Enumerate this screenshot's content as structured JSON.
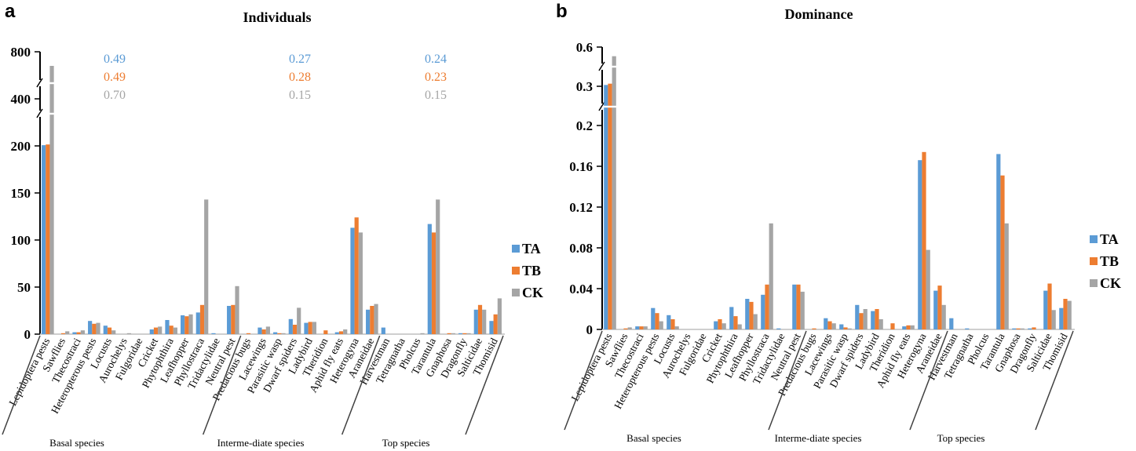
{
  "colors": {
    "TA": "#5b9bd5",
    "TB": "#ed7d31",
    "CK": "#a5a5a5"
  },
  "chart_data": [
    {
      "panel": "a",
      "type": "bar",
      "title": "Individuals",
      "xlabel": "",
      "ylabel": "",
      "axis_break": true,
      "yticks": [
        "0",
        "50",
        "100",
        "150",
        "200",
        "400",
        "800"
      ],
      "categories": [
        "Lepidoptera pests",
        "Sawflies",
        "Thecostraci",
        "Heteropterous pests",
        "Locusts",
        "Aurochelys",
        "Fulgoridae",
        "Cricket",
        "Phytophthira",
        "Leafhopper",
        "Phyllostraca",
        "Tridactylidae",
        "Neutral pest",
        "Predacious bugs",
        "Lacewings",
        "Parasitic wasp",
        "Dwarf spiders",
        "Ladybird",
        "Theridion",
        "Aphid fly eats",
        "Heterogyna",
        "Araneidae",
        "Harvestman",
        "Tetragnatha",
        "Pholcus",
        "Tarantula",
        "Gnaphosa",
        "Dragonfly",
        "Salticidae",
        "Thomisid"
      ],
      "groups": [
        {
          "label": "Basal species",
          "range": [
            0,
            12
          ]
        },
        {
          "label": "Interme-diate species",
          "range": [
            13,
            21
          ]
        },
        {
          "label": "Top species",
          "range": [
            22,
            29
          ]
        }
      ],
      "series": [
        {
          "name": "TA",
          "values": [
            203,
            0,
            2,
            14,
            9,
            0,
            0,
            5,
            15,
            20,
            23,
            1,
            30,
            0,
            7,
            2,
            16,
            12,
            0,
            2,
            113,
            26,
            7,
            0,
            0,
            117,
            0,
            1,
            26,
            14
          ]
        },
        {
          "name": "TB",
          "values": [
            206,
            1,
            2,
            11,
            7,
            0,
            0,
            7,
            9,
            19,
            31,
            0,
            31,
            1,
            5,
            1,
            10,
            13,
            4,
            3,
            124,
            30,
            0,
            0,
            0,
            108,
            1,
            1,
            31,
            21
          ]
        },
        {
          "name": "CK",
          "values": [
            680,
            3,
            4,
            12,
            4,
            1,
            0,
            8,
            7,
            21,
            143,
            0,
            51,
            0,
            8,
            1,
            28,
            13,
            0,
            5,
            108,
            32,
            0,
            0,
            1,
            143,
            1,
            1,
            26,
            38
          ]
        }
      ],
      "annotations": [
        {
          "group": "Basal species",
          "TA": "0.49",
          "TB": "0.49",
          "CK": "0.70"
        },
        {
          "group": "Interme-diate species",
          "TA": "0.27",
          "TB": "0.28",
          "CK": "0.15"
        },
        {
          "group": "Top species",
          "TA": "0.24",
          "TB": "0.23",
          "CK": "0.15"
        }
      ],
      "legend": [
        "TA",
        "TB",
        "CK"
      ],
      "legend_position": "right"
    },
    {
      "panel": "b",
      "type": "bar",
      "title": "Dominance",
      "xlabel": "",
      "ylabel": "",
      "axis_break": true,
      "yticks": [
        "0",
        "0.04",
        "0.08",
        "0.12",
        "0.16",
        "0.2",
        "0.3",
        "0.6"
      ],
      "categories": [
        "Lepidoptera pests",
        "Sawflies",
        "Thecostraci",
        "Heteropterous pests",
        "Locusts",
        "Aurochelys",
        "Fulgoridae",
        "Cricket",
        "Phytophthira",
        "Leafhopper",
        "Phyllostraca",
        "Tridactylidae",
        "Neutral pest",
        "Predacious bugs",
        "Lacewings",
        "Parasitic wasp",
        "Dwarf spiders",
        "Ladybird",
        "Theridion",
        "Aphid fly eats",
        "Heterogyna",
        "Araneidae",
        "Harvestman",
        "Tetragnatha",
        "Pholcus",
        "Tarantula",
        "Gnaphosa",
        "Dragonfly",
        "Salticidae",
        "Thomisid"
      ],
      "groups": [
        {
          "label": "Basal species",
          "range": [
            0,
            12
          ]
        },
        {
          "label": "Interme-diate species",
          "range": [
            13,
            21
          ]
        },
        {
          "label": "Top species",
          "range": [
            22,
            29
          ]
        }
      ],
      "series": [
        {
          "name": "TA",
          "values": [
            0.31,
            0,
            0.003,
            0.021,
            0.014,
            0,
            0,
            0.008,
            0.022,
            0.03,
            0.034,
            0.001,
            0.044,
            0,
            0.011,
            0.005,
            0.024,
            0.018,
            0,
            0.003,
            0.166,
            0.038,
            0.011,
            0.001,
            0,
            0.172,
            0.001,
            0.001,
            0.038,
            0.021
          ]
        },
        {
          "name": "TB",
          "values": [
            0.32,
            0.001,
            0.003,
            0.016,
            0.01,
            0,
            0,
            0.01,
            0.013,
            0.027,
            0.044,
            0,
            0.044,
            0.001,
            0.008,
            0.002,
            0.016,
            0.02,
            0.006,
            0.004,
            0.174,
            0.043,
            0,
            0,
            0,
            0.151,
            0.001,
            0.002,
            0.045,
            0.03
          ]
        },
        {
          "name": "CK",
          "values": [
            0.53,
            0.002,
            0.003,
            0.008,
            0.003,
            0,
            0,
            0.006,
            0.005,
            0.015,
            0.104,
            0,
            0.037,
            0,
            0.006,
            0.001,
            0.02,
            0.01,
            0,
            0.004,
            0.078,
            0.024,
            0,
            0,
            0,
            0.104,
            0.001,
            0,
            0.019,
            0.028
          ]
        }
      ],
      "legend": [
        "TA",
        "TB",
        "CK"
      ],
      "legend_position": "right"
    }
  ]
}
